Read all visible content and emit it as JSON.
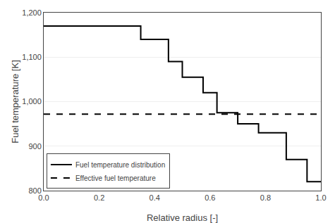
{
  "chart_data": {
    "type": "line",
    "xlabel": "Relative radius [-]",
    "ylabel": "Fuel temperature [K]",
    "series": [
      {
        "name": "Fuel temperature distribution",
        "type": "line",
        "color": "#000000",
        "line_style": "solid",
        "x": [
          0.0,
          0.35,
          0.35,
          0.45,
          0.45,
          0.5,
          0.5,
          0.575,
          0.575,
          0.625,
          0.625,
          0.7,
          0.7,
          0.775,
          0.775,
          0.875,
          0.875,
          0.95,
          0.95,
          1.0
        ],
        "values": [
          1170,
          1170,
          1140,
          1140,
          1090,
          1090,
          1055,
          1055,
          1020,
          1020,
          975,
          975,
          950,
          950,
          930,
          930,
          870,
          870,
          820,
          820
        ]
      },
      {
        "name": "Effective fuel temperature",
        "type": "hline",
        "color": "#000000",
        "line_style": "dashed",
        "values": [
          972
        ]
      }
    ],
    "xlim": [
      0.0,
      1.0
    ],
    "ylim": [
      800,
      1200
    ],
    "xticks": [
      {
        "value": 0.0,
        "label": "0.0"
      },
      0.2,
      0.4,
      0.6,
      0.8,
      {
        "value": 1.0,
        "label": "1.0"
      }
    ],
    "yticks": [
      800,
      900,
      {
        "value": 1000,
        "label": "1,000"
      },
      {
        "value": 1100,
        "label": "1,100"
      },
      {
        "value": 1200,
        "label": "1,200"
      }
    ],
    "grid": "y",
    "legend": "lower left"
  }
}
